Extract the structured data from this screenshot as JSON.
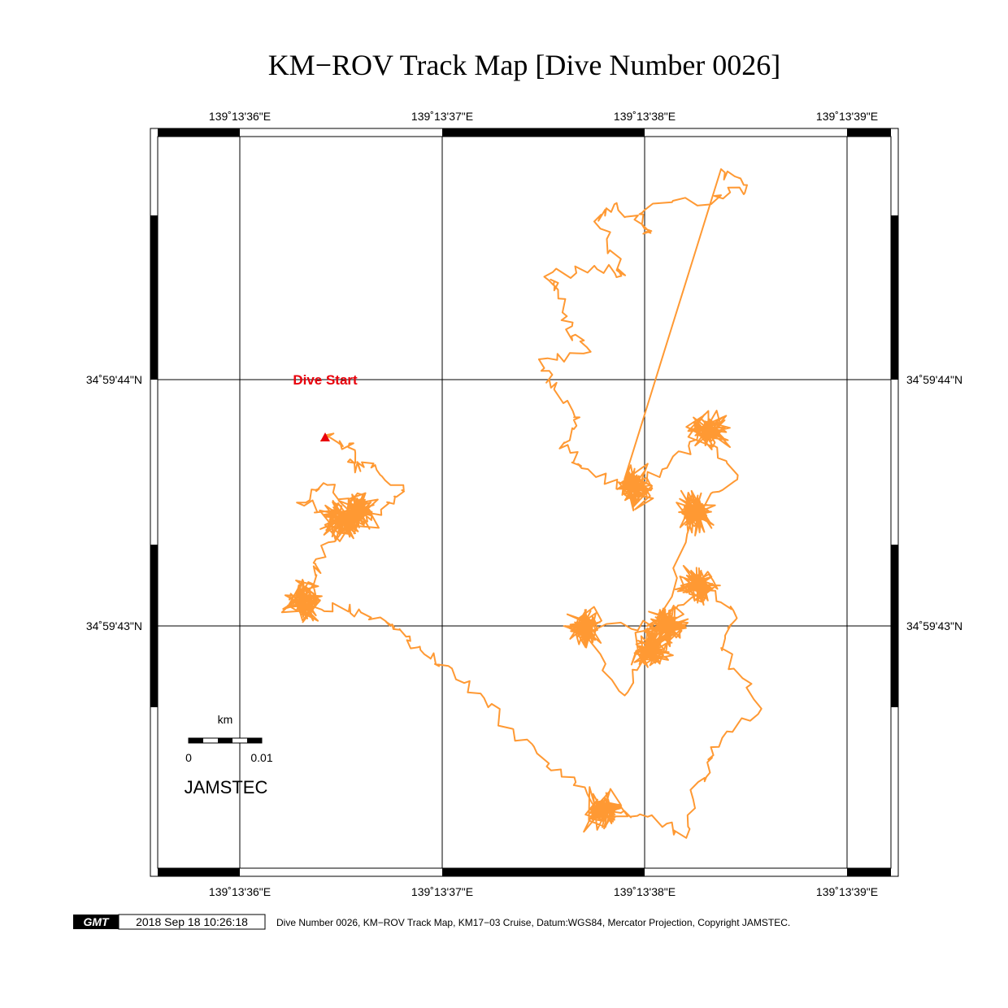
{
  "map": {
    "title": "KM−ROV Track Map [Dive Number 0026]",
    "lon_labels": [
      "139˚13'36\"E",
      "139˚13'37\"E",
      "139˚13'38\"E",
      "139˚13'39\"E"
    ],
    "lat_labels": [
      "34˚59'44\"N",
      "34˚59'43\"N"
    ],
    "annotation": "Dive Start",
    "scale": {
      "unit": "km",
      "labels": [
        "0",
        "0.01"
      ]
    },
    "organization": "JAMSTEC"
  },
  "footer": {
    "logo": "GMT",
    "timestamp": "2018 Sep 18 10:26:18",
    "caption": "Dive Number 0026, KM−ROV Track Map, KM17−03 Cruise, Datum:WGS84, Mercator Projection, Copyright JAMSTEC."
  }
}
